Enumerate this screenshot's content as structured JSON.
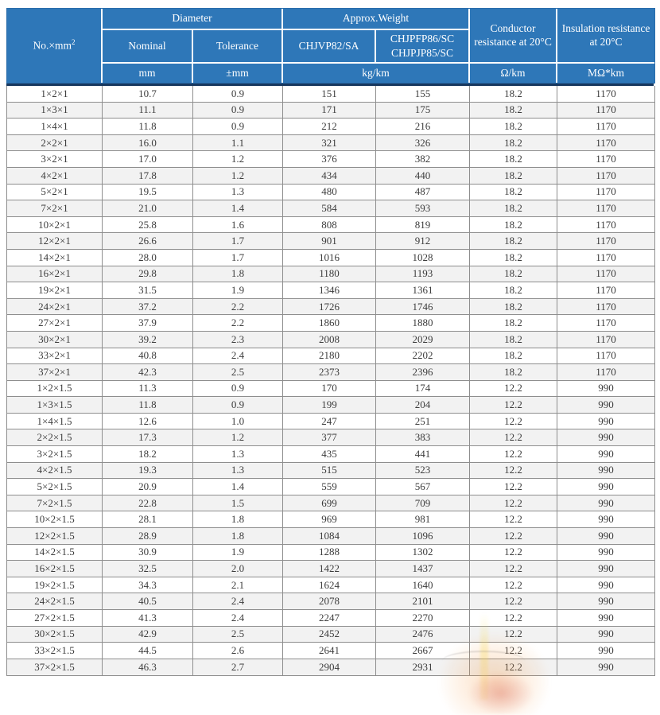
{
  "table": {
    "header": {
      "no_label": "No.×mm",
      "no_sup": "2",
      "diameter": "Diameter",
      "approx_weight": "Approx.Weight",
      "nominal": "Nominal",
      "tolerance": "Tolerance",
      "weight_col1": "CHJVP82/SA",
      "weight_col2_line1": "CHJPFP86/SC",
      "weight_col2_line2": "CHJPJP85/SC",
      "conductor_resistance": "Conductor resistance at 20°C",
      "insulation_resistance": "Insulation resistance at 20°C",
      "unit_mm": "mm",
      "unit_tolerance": "±mm",
      "unit_weight": "kg/km",
      "unit_conductor": "Ω/km",
      "unit_insulation": "MΩ*km"
    },
    "rows": [
      [
        "1×2×1",
        "10.7",
        "0.9",
        "151",
        "155",
        "18.2",
        "1170"
      ],
      [
        "1×3×1",
        "11.1",
        "0.9",
        "171",
        "175",
        "18.2",
        "1170"
      ],
      [
        "1×4×1",
        "11.8",
        "0.9",
        "212",
        "216",
        "18.2",
        "1170"
      ],
      [
        "2×2×1",
        "16.0",
        "1.1",
        "321",
        "326",
        "18.2",
        "1170"
      ],
      [
        "3×2×1",
        "17.0",
        "1.2",
        "376",
        "382",
        "18.2",
        "1170"
      ],
      [
        "4×2×1",
        "17.8",
        "1.2",
        "434",
        "440",
        "18.2",
        "1170"
      ],
      [
        "5×2×1",
        "19.5",
        "1.3",
        "480",
        "487",
        "18.2",
        "1170"
      ],
      [
        "7×2×1",
        "21.0",
        "1.4",
        "584",
        "593",
        "18.2",
        "1170"
      ],
      [
        "10×2×1",
        "25.8",
        "1.6",
        "808",
        "819",
        "18.2",
        "1170"
      ],
      [
        "12×2×1",
        "26.6",
        "1.7",
        "901",
        "912",
        "18.2",
        "1170"
      ],
      [
        "14×2×1",
        "28.0",
        "1.7",
        "1016",
        "1028",
        "18.2",
        "1170"
      ],
      [
        "16×2×1",
        "29.8",
        "1.8",
        "1180",
        "1193",
        "18.2",
        "1170"
      ],
      [
        "19×2×1",
        "31.5",
        "1.9",
        "1346",
        "1361",
        "18.2",
        "1170"
      ],
      [
        "24×2×1",
        "37.2",
        "2.2",
        "1726",
        "1746",
        "18.2",
        "1170"
      ],
      [
        "27×2×1",
        "37.9",
        "2.2",
        "1860",
        "1880",
        "18.2",
        "1170"
      ],
      [
        "30×2×1",
        "39.2",
        "2.3",
        "2008",
        "2029",
        "18.2",
        "1170"
      ],
      [
        "33×2×1",
        "40.8",
        "2.4",
        "2180",
        "2202",
        "18.2",
        "1170"
      ],
      [
        "37×2×1",
        "42.3",
        "2.5",
        "2373",
        "2396",
        "18.2",
        "1170"
      ],
      [
        "1×2×1.5",
        "11.3",
        "0.9",
        "170",
        "174",
        "12.2",
        "990"
      ],
      [
        "1×3×1.5",
        "11.8",
        "0.9",
        "199",
        "204",
        "12.2",
        "990"
      ],
      [
        "1×4×1.5",
        "12.6",
        "1.0",
        "247",
        "251",
        "12.2",
        "990"
      ],
      [
        "2×2×1.5",
        "17.3",
        "1.2",
        "377",
        "383",
        "12.2",
        "990"
      ],
      [
        "3×2×1.5",
        "18.2",
        "1.3",
        "435",
        "441",
        "12.2",
        "990"
      ],
      [
        "4×2×1.5",
        "19.3",
        "1.3",
        "515",
        "523",
        "12.2",
        "990"
      ],
      [
        "5×2×1.5",
        "20.9",
        "1.4",
        "559",
        "567",
        "12.2",
        "990"
      ],
      [
        "7×2×1.5",
        "22.8",
        "1.5",
        "699",
        "709",
        "12.2",
        "990"
      ],
      [
        "10×2×1.5",
        "28.1",
        "1.8",
        "969",
        "981",
        "12.2",
        "990"
      ],
      [
        "12×2×1.5",
        "28.9",
        "1.8",
        "1084",
        "1096",
        "12.2",
        "990"
      ],
      [
        "14×2×1.5",
        "30.9",
        "1.9",
        "1288",
        "1302",
        "12.2",
        "990"
      ],
      [
        "16×2×1.5",
        "32.5",
        "2.0",
        "1422",
        "1437",
        "12.2",
        "990"
      ],
      [
        "19×2×1.5",
        "34.3",
        "2.1",
        "1624",
        "1640",
        "12.2",
        "990"
      ],
      [
        "24×2×1.5",
        "40.5",
        "2.4",
        "2078",
        "2101",
        "12.2",
        "990"
      ],
      [
        "27×2×1.5",
        "41.3",
        "2.4",
        "2247",
        "2270",
        "12.2",
        "990"
      ],
      [
        "30×2×1.5",
        "42.9",
        "2.5",
        "2452",
        "2476",
        "12.2",
        "990"
      ],
      [
        "33×2×1.5",
        "44.5",
        "2.6",
        "2641",
        "2667",
        "12.2",
        "990"
      ],
      [
        "37×2×1.5",
        "46.3",
        "2.7",
        "2904",
        "2931",
        "12.2",
        "990"
      ]
    ]
  },
  "colors": {
    "header_bg": "#2e77b8",
    "header_divider": "#ffffff",
    "header_bottom_line": "#17375e",
    "row_alt_bg": "#f2f2f2",
    "grid_line": "#8e8e8e",
    "body_text": "#3c3c3c",
    "watermark_orange": "#f4963c",
    "watermark_red": "#cd3728",
    "watermark_yellow": "#fae150"
  }
}
